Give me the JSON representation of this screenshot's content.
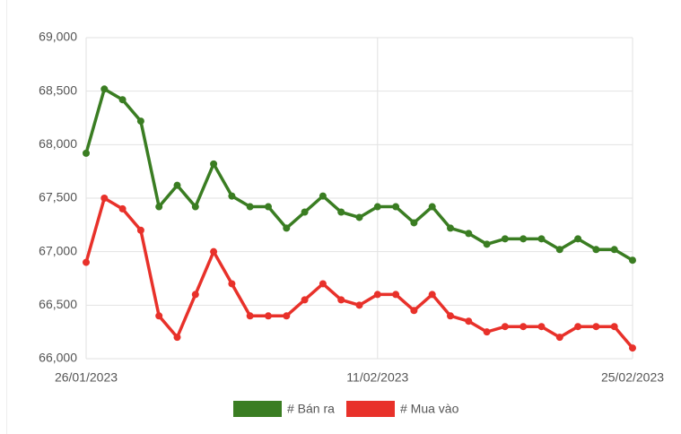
{
  "chart_data": {
    "type": "line",
    "categories": [
      "26/01/2023",
      null,
      null,
      null,
      null,
      null,
      null,
      null,
      null,
      null,
      null,
      null,
      null,
      null,
      null,
      null,
      "11/02/2023",
      null,
      null,
      null,
      null,
      null,
      null,
      null,
      null,
      null,
      null,
      null,
      null,
      null,
      "25/02/2023"
    ],
    "series": [
      {
        "name": "# Bán ra",
        "color": "#3a7d22",
        "values": [
          67920,
          68520,
          68420,
          68220,
          67420,
          67620,
          67420,
          67820,
          67520,
          67420,
          67420,
          67220,
          67370,
          67520,
          67370,
          67320,
          67420,
          67420,
          67270,
          67420,
          67220,
          67170,
          67070,
          67120,
          67120,
          67120,
          67020,
          67120,
          67020,
          67020,
          66920
        ]
      },
      {
        "name": "# Mua vào",
        "color": "#e8312a",
        "values": [
          66900,
          67500,
          67400,
          67200,
          66400,
          66200,
          66600,
          67000,
          66700,
          66400,
          66400,
          66400,
          66550,
          66700,
          66550,
          66500,
          66600,
          66600,
          66450,
          66600,
          66400,
          66350,
          66250,
          66300,
          66300,
          66300,
          66200,
          66300,
          66300,
          66300,
          66100
        ]
      }
    ],
    "ylim": [
      66000,
      69000
    ],
    "yticks": [
      {
        "value": 66000,
        "label": "66,000"
      },
      {
        "value": 66500,
        "label": "66,500"
      },
      {
        "value": 67000,
        "label": "67,000"
      },
      {
        "value": 67500,
        "label": "67,500"
      },
      {
        "value": 68000,
        "label": "68,000"
      },
      {
        "value": 68500,
        "label": "68,500"
      },
      {
        "value": 69000,
        "label": "69,000"
      }
    ],
    "grid": true,
    "legend": "bottom"
  }
}
